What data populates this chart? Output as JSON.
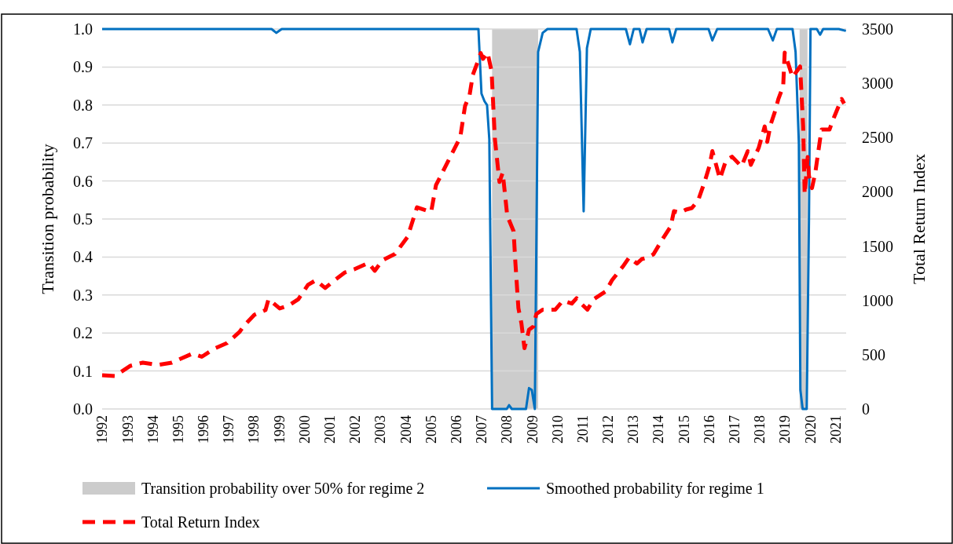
{
  "chart_data": {
    "type": "line",
    "ylabel": "Transition probability",
    "y2label": "Total Return Index",
    "xlim": [
      1992,
      2021.42
    ],
    "xticks": [
      1992,
      1993,
      1994,
      1995,
      1996,
      1997,
      1998,
      1999,
      2000,
      2001,
      2002,
      2003,
      2004,
      2005,
      2006,
      2007,
      2008,
      2009,
      2010,
      2011,
      2012,
      2013,
      2014,
      2015,
      2016,
      2017,
      2018,
      2019,
      2020,
      2021
    ],
    "ylim": [
      0,
      1
    ],
    "yticks": [
      {
        "value": 0,
        "label": "0.0"
      },
      {
        "value": 0.1,
        "label": "0.1"
      },
      {
        "value": 0.2,
        "label": "0.2"
      },
      {
        "value": 0.3,
        "label": "0.3"
      },
      {
        "value": 0.4,
        "label": "0.4"
      },
      {
        "value": 0.5,
        "label": "0.5"
      },
      {
        "value": 0.6,
        "label": "0.6"
      },
      {
        "value": 0.7,
        "label": "0.7"
      },
      {
        "value": 0.8,
        "label": "0.8"
      },
      {
        "value": 0.9,
        "label": "0.9"
      },
      {
        "value": 1,
        "label": "1.0"
      }
    ],
    "y2lim": [
      0,
      3500
    ],
    "y2ticks": [
      0,
      500,
      1000,
      1500,
      2000,
      2500,
      3000,
      3500
    ],
    "grid": "y",
    "legend": "bottom",
    "bands": [
      {
        "axis": "x",
        "from": 2007.42,
        "to": 2009.24,
        "label": "Transition probability over 50% for regime 2",
        "color": "#cccccc"
      },
      {
        "axis": "x",
        "from": 2019.58,
        "to": 2019.89,
        "color": "#cccccc"
      }
    ],
    "series": [
      {
        "name": "Smoothed probability for regime 1",
        "color": "#0070c0",
        "line_style": "solid",
        "x": [
          1992,
          1998.7,
          1998.89,
          1999.1,
          2006.88,
          2007.0,
          2007.12,
          2007.22,
          2007.31,
          2007.42,
          2008.0,
          2008.09,
          2008.2,
          2008.76,
          2008.88,
          2008.99,
          2009.11,
          2009.24,
          2009.42,
          2009.61,
          2010.76,
          2010.89,
          2011.04,
          2011.17,
          2011.32,
          2012.71,
          2012.87,
          2013.02,
          2013.25,
          2013.37,
          2013.53,
          2014.42,
          2014.55,
          2014.7,
          2015.98,
          2016.13,
          2016.32,
          2018.33,
          2018.52,
          2018.68,
          2019.3,
          2019.42,
          2019.55,
          2019.61,
          2019.7,
          2019.86,
          2019.95,
          2020.01,
          2020.26,
          2020.39,
          2020.51,
          2021.13,
          2021.41
        ],
        "values": [
          1,
          1,
          0.99,
          1,
          1,
          0.83,
          0.81,
          0.8,
          0.71,
          0,
          0,
          0.01,
          0,
          0,
          0.055,
          0.05,
          0,
          0.94,
          0.99,
          1,
          1,
          0.94,
          0.52,
          0.95,
          1,
          1,
          0.96,
          1,
          1,
          0.965,
          1,
          1,
          0.965,
          1,
          1,
          0.97,
          1,
          1,
          0.97,
          1,
          1,
          0.94,
          0.7,
          0.05,
          0,
          0,
          0.5,
          1,
          1,
          0.985,
          1,
          1,
          0.995
        ]
      },
      {
        "name": "Total Return Index",
        "color": "#ff0000",
        "axis": "y2",
        "line_style": "dashed",
        "x": [
          1992,
          1992.5,
          1993.12,
          1993.61,
          1994.2,
          1994.76,
          1995.57,
          1995.94,
          1996.44,
          1996.94,
          1997.43,
          1997.61,
          1998.02,
          1998.46,
          1998.58,
          1999.02,
          1999.39,
          1999.76,
          2000.14,
          2000.45,
          2000.82,
          2001.19,
          2001.6,
          2001.97,
          2002.53,
          2002.78,
          2003.09,
          2003.58,
          2004.08,
          2004.45,
          2005.01,
          2005.2,
          2005.66,
          2006.16,
          2006.35,
          2006.53,
          2006.66,
          2006.84,
          2006.97,
          2007.06,
          2007.24,
          2007.4,
          2007.53,
          2007.71,
          2007.84,
          2008.02,
          2008.27,
          2008.34,
          2008.46,
          2008.58,
          2008.7,
          2008.88,
          2009.05,
          2009.17,
          2009.42,
          2009.92,
          2010.22,
          2010.57,
          2010.76,
          2010.94,
          2011.19,
          2011.44,
          2011.92,
          2012.16,
          2012.59,
          2012.84,
          2013.15,
          2013.34,
          2013.57,
          2013.8,
          2014.17,
          2014.48,
          2014.61,
          2014.86,
          2015.09,
          2015.32,
          2015.57,
          2015.82,
          2016.01,
          2016.13,
          2016.43,
          2016.67,
          2016.91,
          2017.28,
          2017.53,
          2017.65,
          2017.96,
          2018.2,
          2018.3,
          2018.43,
          2018.61,
          2018.74,
          2018.93,
          2018.99,
          2019.11,
          2019.3,
          2019.6,
          2019.72,
          2019.78,
          2019.9,
          2019.95,
          2020.07,
          2020.2,
          2020.39,
          2020.45,
          2020.76,
          2020.94,
          2021.24,
          2021.34
        ],
        "values": [
          311,
          304,
          398,
          427,
          405,
          427,
          510,
          481,
          557,
          607,
          709,
          767,
          868,
          911,
          1012,
          926,
          955,
          1012,
          1143,
          1186,
          1114,
          1186,
          1258,
          1287,
          1345,
          1273,
          1370,
          1428,
          1586,
          1858,
          1815,
          2061,
          2274,
          2502,
          2791,
          2892,
          3080,
          3192,
          3278,
          3225,
          3283,
          3112,
          2487,
          2091,
          2177,
          1779,
          1638,
          1352,
          929,
          788,
          560,
          730,
          759,
          875,
          915,
          915,
          998,
          971,
          1020,
          971,
          915,
          1012,
          1085,
          1186,
          1312,
          1396,
          1340,
          1381,
          1396,
          1425,
          1569,
          1680,
          1822,
          1808,
          1837,
          1851,
          1923,
          2090,
          2234,
          2375,
          2119,
          2292,
          2324,
          2234,
          2375,
          2249,
          2404,
          2603,
          2460,
          2618,
          2743,
          2856,
          2972,
          3283,
          3196,
          3056,
          3155,
          2603,
          1978,
          2321,
          2148,
          2035,
          2177,
          2487,
          2574,
          2574,
          2687,
          2856,
          2813
        ]
      }
    ]
  }
}
